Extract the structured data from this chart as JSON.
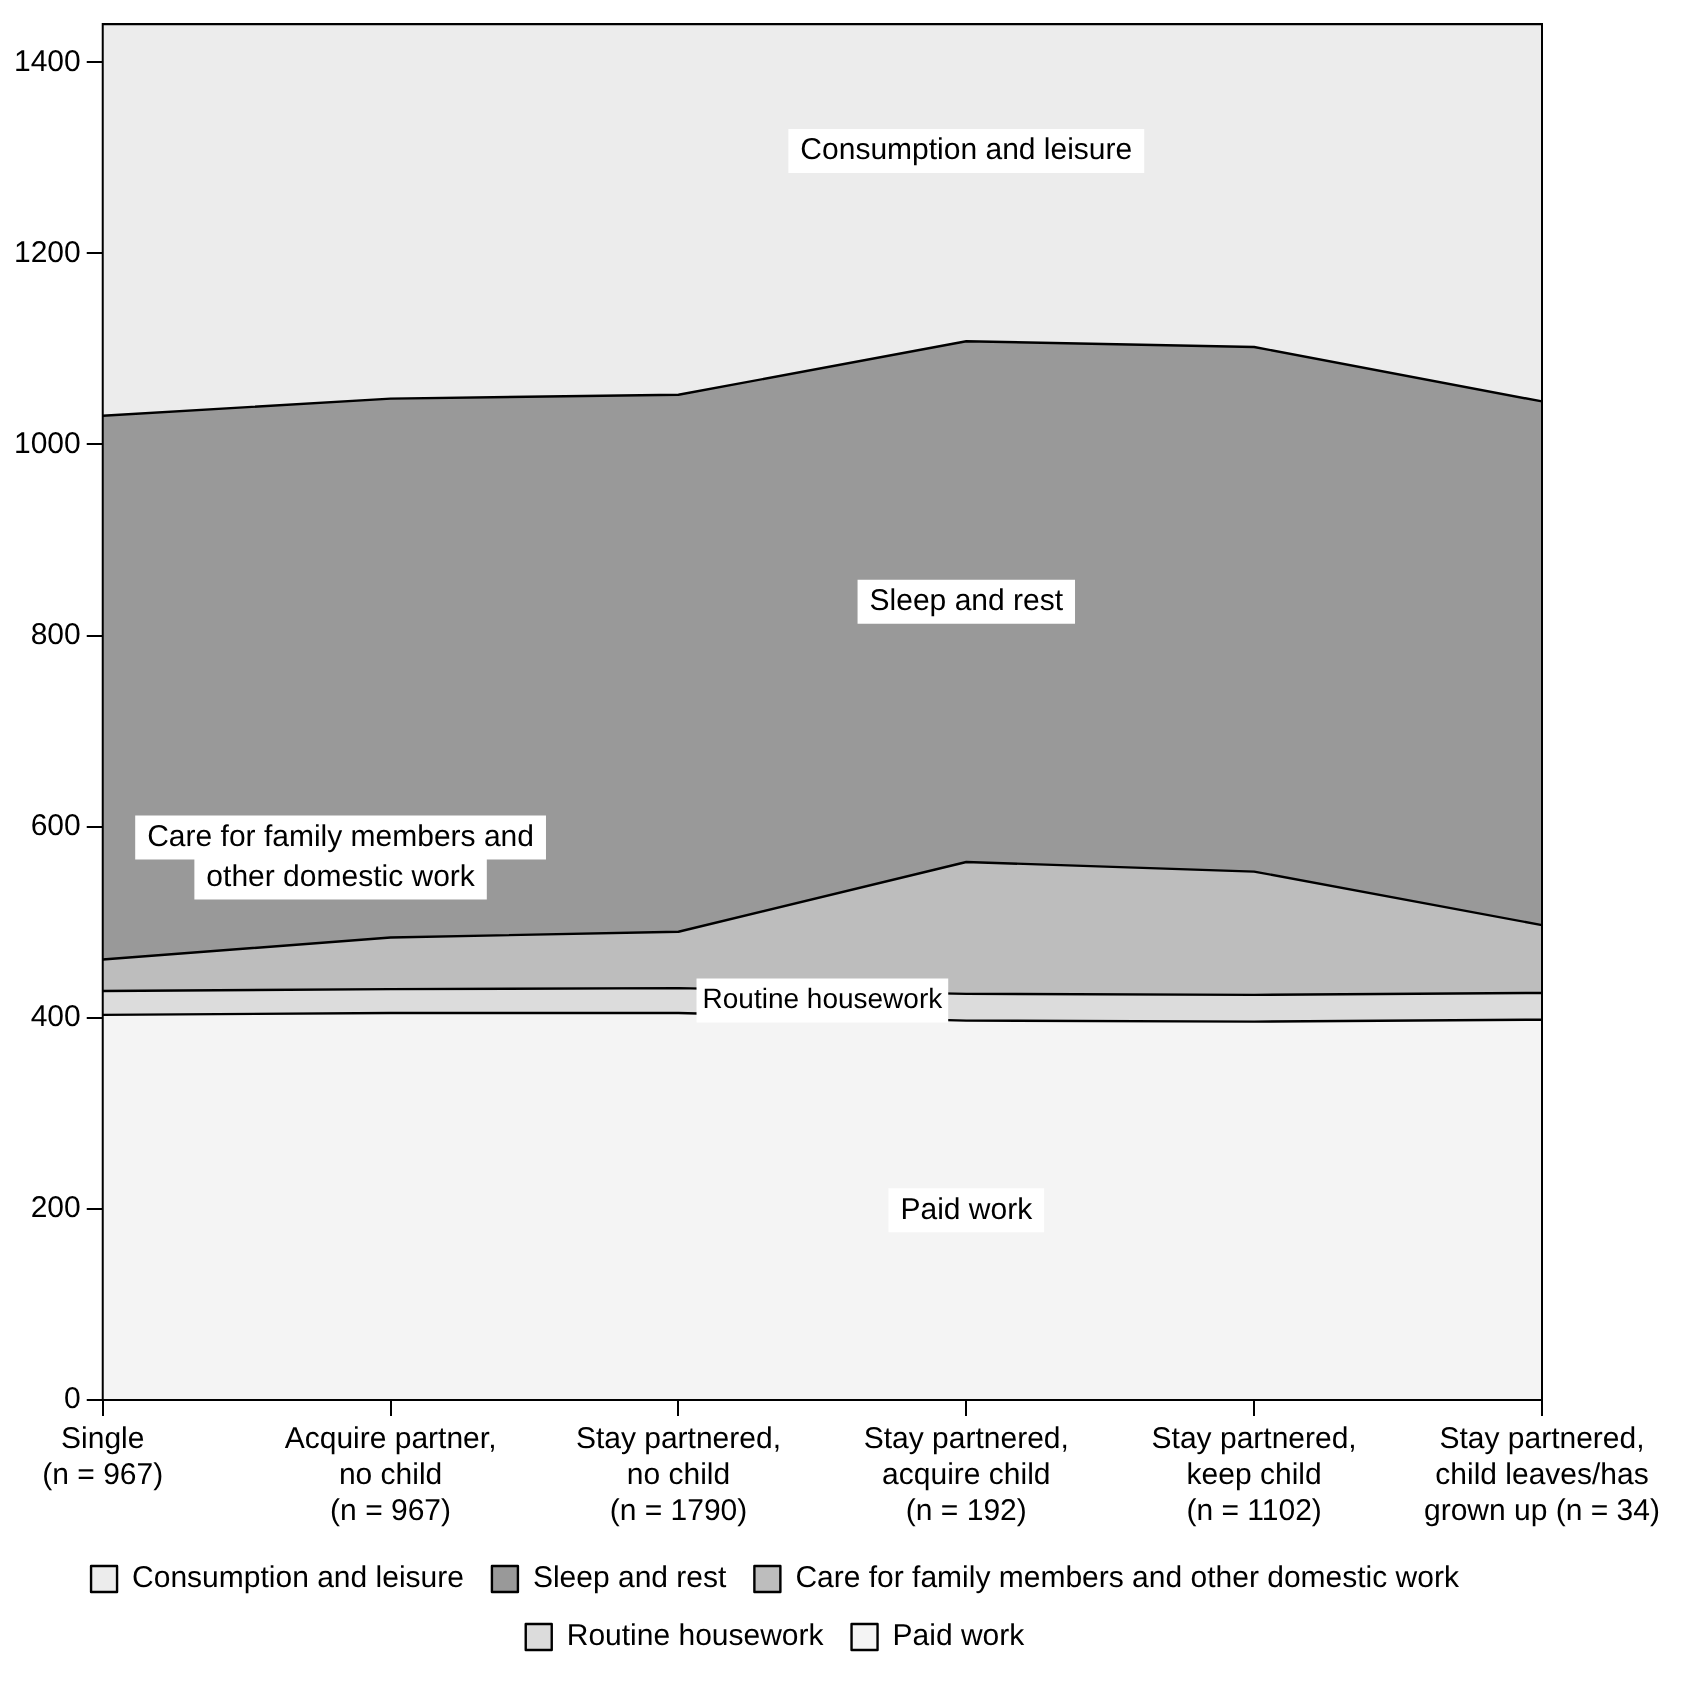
{
  "chart_data": {
    "type": "area",
    "stacked": true,
    "categories": [
      "Single\n(n = 967)",
      "Acquire partner,\nno child\n(n = 967)",
      "Stay partnered,\nno child\n(n = 1790)",
      "Stay partnered,\nacquire child\n(n = 192)",
      "Stay partnered,\nkeep child\n(n = 1102)",
      "Stay partnered,\nchild leaves/has\ngrown up (n = 34)"
    ],
    "series": [
      {
        "name": "Paid work",
        "color": "#f4f4f4",
        "values": [
          403,
          405,
          405,
          397,
          396,
          398
        ]
      },
      {
        "name": "Routine housework",
        "color": "#dcdcdc",
        "values": [
          25,
          25,
          26,
          28,
          28,
          28
        ]
      },
      {
        "name": "Care for family members and other domestic work",
        "color": "#bdbdbd",
        "values": [
          33,
          54,
          59,
          138,
          129,
          71
        ]
      },
      {
        "name": "Sleep and rest",
        "color": "#999999",
        "values": [
          569,
          564,
          562,
          545,
          549,
          548
        ]
      },
      {
        "name": "Consumption and leisure",
        "color": "#ececec",
        "values": [
          410,
          392,
          388,
          332,
          338,
          395
        ]
      }
    ],
    "ylim": [
      0,
      1440
    ],
    "yticks": [
      0,
      200,
      400,
      600,
      800,
      1000,
      1200,
      1400
    ],
    "legend": "bottom"
  }
}
